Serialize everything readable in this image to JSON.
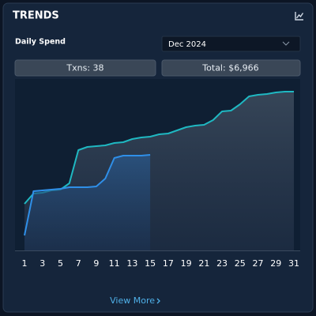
{
  "header": {
    "title": "TRENDS"
  },
  "controls": {
    "label": "Daily Spend",
    "month": "Dec 2024"
  },
  "stats": {
    "txns": "Txns: 38",
    "total": "Total: $6,966"
  },
  "chart_data": {
    "type": "line",
    "x": [
      1,
      2,
      3,
      4,
      5,
      6,
      7,
      8,
      9,
      10,
      11,
      12,
      13,
      14,
      15,
      16,
      17,
      18,
      19,
      20,
      21,
      22,
      23,
      24,
      25,
      26,
      27,
      28,
      29,
      30,
      31
    ],
    "xlim": [
      1,
      31
    ],
    "xticks": [
      1,
      3,
      5,
      7,
      9,
      11,
      13,
      15,
      17,
      19,
      21,
      23,
      25,
      27,
      29,
      31
    ],
    "ylim": [
      0,
      100
    ],
    "series": [
      {
        "color": "#1fb8c2",
        "values": [
          28.5,
          35,
          35.5,
          37,
          37.5,
          41.5,
          62.5,
          64.5,
          65,
          65.5,
          67,
          67.5,
          69.5,
          70.5,
          71,
          72.5,
          73,
          75,
          77,
          78,
          78.5,
          81.5,
          87,
          87.5,
          91.5,
          96.5,
          97.5,
          98,
          99,
          99.5,
          99.5
        ]
      },
      {
        "color": "#2f8fe8",
        "values": [
          8.5,
          36.5,
          37,
          37.5,
          38,
          39,
          39,
          39,
          39.5,
          44.5,
          57.5,
          59,
          59,
          59,
          59.5,
          null,
          null,
          null,
          null,
          null,
          null,
          null,
          null,
          null,
          null,
          null,
          null,
          null,
          null,
          null,
          null
        ]
      }
    ]
  },
  "footer": {
    "link": "View More"
  }
}
